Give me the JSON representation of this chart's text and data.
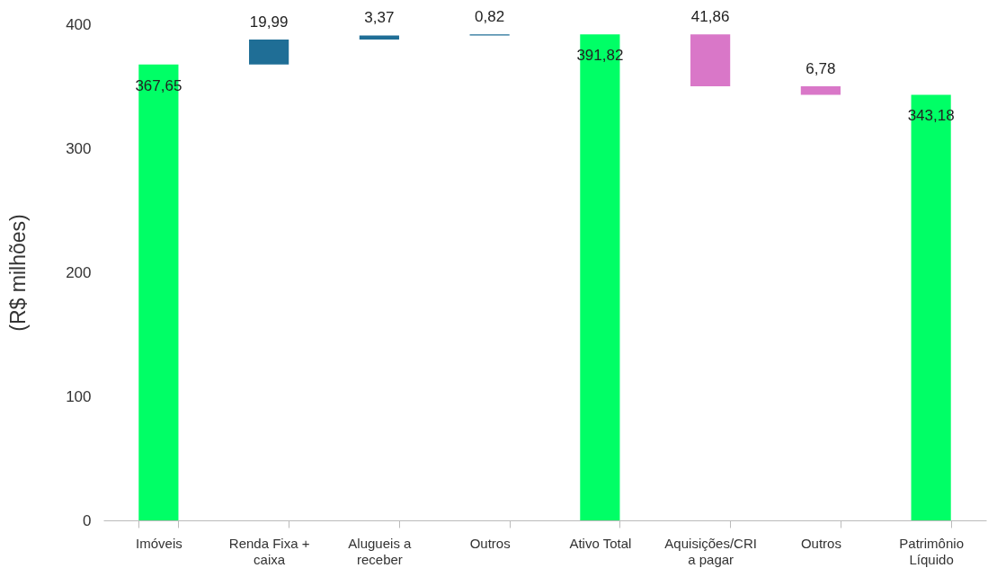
{
  "chart_data": {
    "type": "bar",
    "ylabel": "(R$ milhões)",
    "categories": [
      "Imóveis",
      "Renda Fixa + caixa",
      "Alugueis a receber",
      "Outros",
      "Ativo Total",
      "Aquisições/CRI a pagar",
      "Outros",
      "Patrimônio Líquido"
    ],
    "values": [
      367.65,
      19.99,
      3.37,
      0.82,
      391.82,
      41.86,
      6.78,
      343.18
    ],
    "base": [
      0,
      367.65,
      387.64,
      391.01,
      0,
      349.96,
      343.18,
      0
    ],
    "colors": [
      "#00ff66",
      "#1f6e96",
      "#1f6e96",
      "#1f6e96",
      "#00ff66",
      "#d977c8",
      "#d977c8",
      "#00ff66"
    ],
    "value_labels": [
      "367,65",
      "19,99",
      "3,37",
      "0,82",
      "391,82",
      "41,86",
      "6,78",
      "343,18"
    ],
    "ylim": [
      0,
      400
    ],
    "yticks": [
      0,
      100,
      200,
      300,
      400
    ],
    "grid": false
  }
}
